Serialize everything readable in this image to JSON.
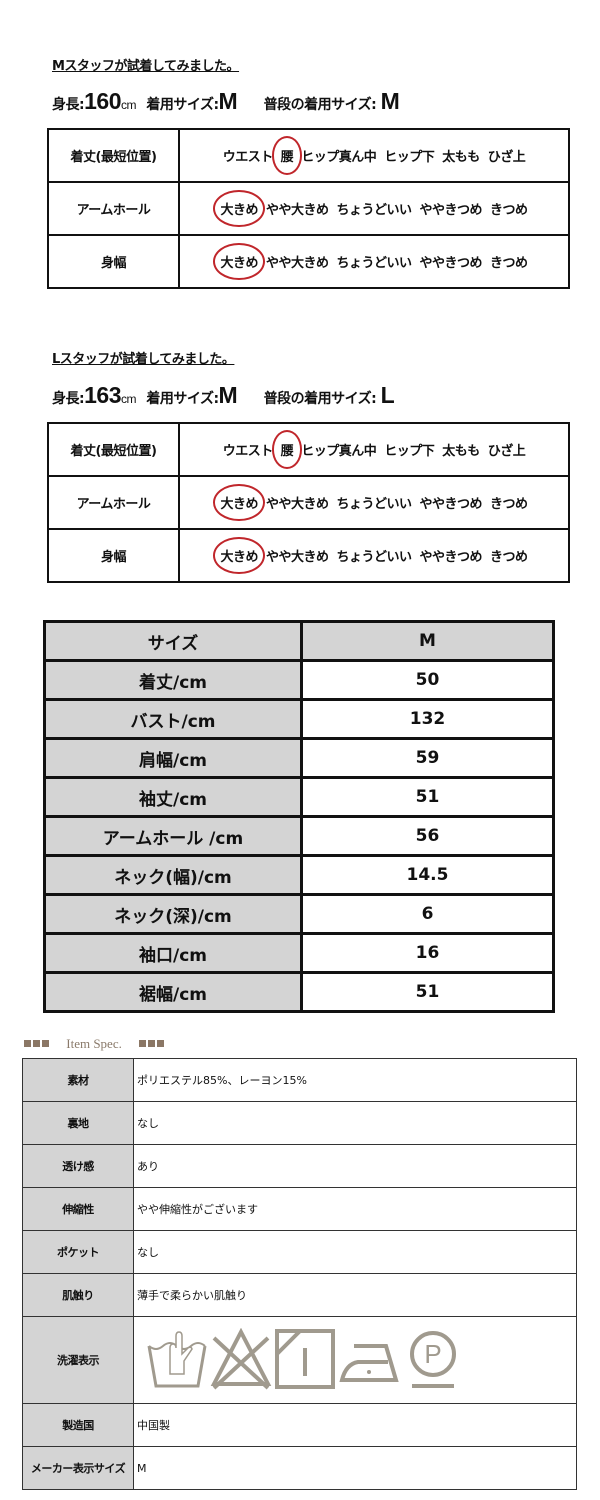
{
  "staff": [
    {
      "title": "Mスタッフが試着してみました。",
      "height_label": "身長:",
      "height_value": "160",
      "height_unit": "cm",
      "worn_label": "着用サイズ:",
      "worn_value": "M",
      "usual_label": "普段の着用サイズ:",
      "usual_value": "M",
      "rows": [
        {
          "label": "着丈(最短位置)",
          "options": [
            "ウエスト",
            "腰",
            "ヒップ真ん中",
            "ヒップ下",
            "太もも",
            "ひざ上"
          ],
          "selected": 1
        },
        {
          "label": "アームホール",
          "options": [
            "大きめ",
            "やや大きめ",
            "ちょうどいい",
            "ややきつめ",
            "きつめ"
          ],
          "selected": 0
        },
        {
          "label": "身幅",
          "options": [
            "大きめ",
            "やや大きめ",
            "ちょうどいい",
            "ややきつめ",
            "きつめ"
          ],
          "selected": 0
        }
      ]
    },
    {
      "title": "Lスタッフが試着してみました。",
      "height_label": "身長:",
      "height_value": "163",
      "height_unit": "cm",
      "worn_label": "着用サイズ:",
      "worn_value": "M",
      "usual_label": "普段の着用サイズ:",
      "usual_value": "L",
      "rows": [
        {
          "label": "着丈(最短位置)",
          "options": [
            "ウエスト",
            "腰",
            "ヒップ真ん中",
            "ヒップ下",
            "太もも",
            "ひざ上"
          ],
          "selected": 1
        },
        {
          "label": "アームホール",
          "options": [
            "大きめ",
            "やや大きめ",
            "ちょうどいい",
            "ややきつめ",
            "きつめ"
          ],
          "selected": 0
        },
        {
          "label": "身幅",
          "options": [
            "大きめ",
            "やや大きめ",
            "ちょうどいい",
            "ややきつめ",
            "きつめ"
          ],
          "selected": 0
        }
      ]
    }
  ],
  "size_table": {
    "header": [
      "サイズ",
      "M"
    ],
    "rows": [
      [
        "着丈/cm",
        "50"
      ],
      [
        "バスト/cm",
        "132"
      ],
      [
        "肩幅/cm",
        "59"
      ],
      [
        "袖丈/cm",
        "51"
      ],
      [
        "アームホール /cm",
        "56"
      ],
      [
        "ネック(幅)/cm",
        "14.5"
      ],
      [
        "ネック(深)/cm",
        "6"
      ],
      [
        "袖口/cm",
        "16"
      ],
      [
        "裾幅/cm",
        "51"
      ]
    ]
  },
  "item_spec": {
    "heading": "Item Spec.",
    "accent_color": "#8b7765",
    "rows": [
      {
        "label": "素材",
        "value": "ポリエステル85%、レーヨン15%"
      },
      {
        "label": "裏地",
        "value": "なし"
      },
      {
        "label": "透け感",
        "value": "あり"
      },
      {
        "label": "伸縮性",
        "value": "やや伸縮性がございます"
      },
      {
        "label": "ポケット",
        "value": "なし"
      },
      {
        "label": "肌触り",
        "value": "薄手で柔らかい肌触り"
      },
      {
        "label": "洗濯表示",
        "icons": [
          "hand-wash-icon",
          "no-bleach-icon",
          "line-dry-shade-icon",
          "low-iron-icon",
          "dry-clean-p-icon"
        ]
      },
      {
        "label": "製造国",
        "value": "中国製"
      },
      {
        "label": "メーカー表示サイズ",
        "value": "M"
      }
    ]
  }
}
